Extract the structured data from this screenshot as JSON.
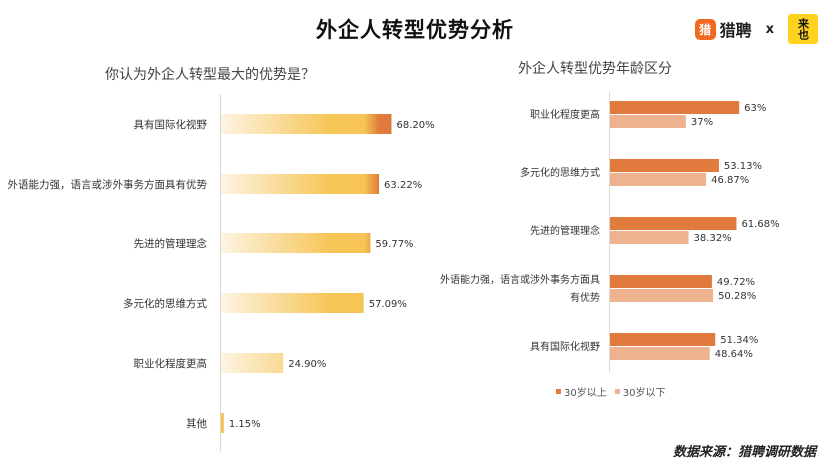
{
  "header": {
    "title": "外企人转型优势分析",
    "logo_liepin_badge": "猎",
    "logo_liepin_text": "猎聘",
    "logo_x": "x",
    "logo_laiye": "来也"
  },
  "footer": {
    "source": "数据来源：猎聘调研数据"
  },
  "colors": {
    "dark_orange": "#e07b3d",
    "light_orange": "#eeb38e",
    "gradient_start": "#fdf4e3",
    "gradient_mid": "#f6c555",
    "axis": "#d9d9d9"
  },
  "chart_data": [
    {
      "type": "bar",
      "orientation": "horizontal",
      "title": "你认为外企人转型最大的优势是？",
      "categories": [
        "具有国际化视野",
        "外语能力强，语言或涉外事务方面具有优势",
        "先进的管理理念",
        "多元化的思维方式",
        "职业化程度更高",
        "其他"
      ],
      "values": [
        68.2,
        63.22,
        59.77,
        57.09,
        24.9,
        1.15
      ],
      "labels": [
        "68.20%",
        "63.22%",
        "59.77%",
        "57.09%",
        "24.90%",
        "1.15%"
      ],
      "xlim": [
        0,
        100
      ]
    },
    {
      "type": "bar",
      "orientation": "horizontal",
      "title": "外企人转型优势年龄区分",
      "categories": [
        "职业化程度更高",
        "多元化的思维方式",
        "先进的管理理念",
        "外语能力强，语言或涉外事务方面具有优势",
        "具有国际化视野"
      ],
      "category_lines": [
        [
          "职业化程度更高"
        ],
        [
          "多元化的思维方式"
        ],
        [
          "先进的管理理念"
        ],
        [
          "外语能力强，语言或涉外事务方面具",
          "有优势"
        ],
        [
          "具有国际化视野"
        ]
      ],
      "series": [
        {
          "name": "30岁以上",
          "values": [
            63,
            53.13,
            61.68,
            49.72,
            51.34
          ],
          "labels": [
            "63%",
            "53.13%",
            "61.68%",
            "49.72%",
            "51.34%"
          ]
        },
        {
          "name": "30岁以下",
          "values": [
            37,
            46.87,
            38.32,
            50.28,
            48.64
          ],
          "labels": [
            "37%",
            "46.87%",
            "38.32%",
            "50.28%",
            "48.64%"
          ]
        }
      ],
      "xlim": [
        0,
        100
      ],
      "legend": "bottom"
    }
  ]
}
